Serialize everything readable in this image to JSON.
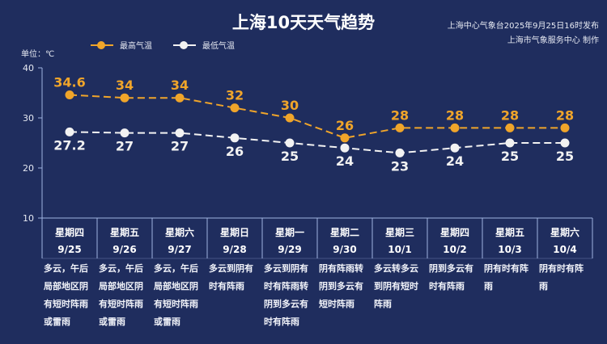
{
  "header": {
    "title": "上海10天天气趋势",
    "publisher_line1": "上海中心气象台2025年9月25日16时发布",
    "publisher_line2": "上海市气象服务中心 制作"
  },
  "unit_label": "单位：℃",
  "colors": {
    "background": "#1f2d5e",
    "high": "#f0a52a",
    "low": "#f2f2f2",
    "grid": "#9fb3e0"
  },
  "chart_data": {
    "type": "line",
    "title": "上海10天天气趋势",
    "ylabel": "单位：℃",
    "ylim": [
      10,
      40
    ],
    "yticks": [
      10,
      20,
      30,
      40
    ],
    "grid": false,
    "legend": "top-left",
    "categories": [
      {
        "weekday": "星期四",
        "date": "9/25",
        "desc": "多云，午后\n局部地区阴\n有短时阵雨\n或雷雨"
      },
      {
        "weekday": "星期五",
        "date": "9/26",
        "desc": "多云，午后\n局部地区阴\n有短时阵雨\n或雷雨"
      },
      {
        "weekday": "星期六",
        "date": "9/27",
        "desc": "多云，午后\n局部地区阴\n有短时阵雨\n或雷雨"
      },
      {
        "weekday": "星期日",
        "date": "9/28",
        "desc": "多云到阴有\n时有阵雨"
      },
      {
        "weekday": "星期一",
        "date": "9/29",
        "desc": "多云到阴有\n时有阵雨转\n阴到多云有\n时有阵雨"
      },
      {
        "weekday": "星期二",
        "date": "9/30",
        "desc": "阴有阵雨转\n阴到多云有\n短时阵雨"
      },
      {
        "weekday": "星期三",
        "date": "10/1",
        "desc": "多云转多云\n到阴有短时\n阵雨"
      },
      {
        "weekday": "星期四",
        "date": "10/2",
        "desc": "阴到多云有\n时有阵雨"
      },
      {
        "weekday": "星期五",
        "date": "10/3",
        "desc": "阴有时有阵\n雨"
      },
      {
        "weekday": "星期六",
        "date": "10/4",
        "desc": "阴有时有阵\n雨"
      }
    ],
    "series": [
      {
        "name": "最高气温",
        "color": "#f0a52a",
        "values": [
          34.6,
          34,
          34,
          32,
          30,
          26,
          28,
          28,
          28,
          28
        ]
      },
      {
        "name": "最低气温",
        "color": "#f2f2f2",
        "values": [
          27.2,
          27,
          27,
          26,
          25,
          24,
          23,
          24,
          25,
          25
        ]
      }
    ]
  }
}
